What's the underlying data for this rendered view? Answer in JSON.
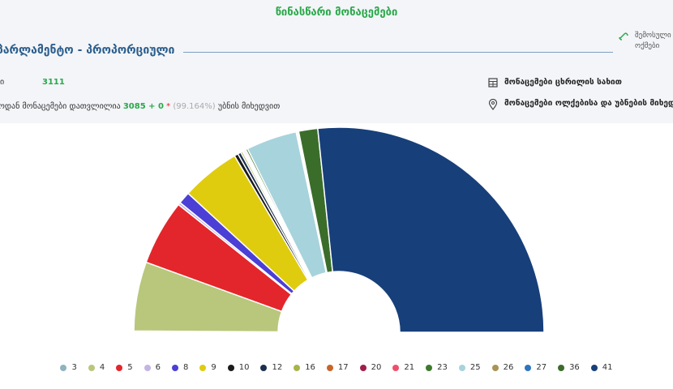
{
  "header": {
    "title": "წინასწარი მონაცემები",
    "section": "პარლამენტო - პროპორციული",
    "link": "შემოსული ოქმები"
  },
  "stats": {
    "total_label": "ი",
    "total": "3111",
    "counted_label": "ოდან მონაცემები დათვლილია",
    "counted": "3085 + 0",
    "asterisk": "*",
    "percent": "(99.164%)",
    "counted_suffix": "უბნის მიხედვით"
  },
  "links": [
    "მონაცემები ცხრილის სახით",
    "მონაცემები ოლქებისა და უბნების მიხედვით"
  ],
  "chart_data": {
    "type": "pie",
    "categories": [
      "3",
      "4",
      "5",
      "6",
      "8",
      "9",
      "10",
      "12",
      "16",
      "17",
      "20",
      "21",
      "23",
      "25",
      "26",
      "27",
      "36",
      "41"
    ],
    "values": [
      0.2,
      10.9,
      10.3,
      0.4,
      1.9,
      9.3,
      0.6,
      0.5,
      0.3,
      0.2,
      0.2,
      0.2,
      0.3,
      8.0,
      0.2,
      0.2,
      3.0,
      53.3
    ],
    "colors": [
      "#8fb3bf",
      "#b8c77b",
      "#e3262b",
      "#c3b5e3",
      "#4b3fd6",
      "#dfcc0e",
      "#1b1b1b",
      "#1d2f4f",
      "#a8b44a",
      "#c8652a",
      "#a01f4a",
      "#ef4f6b",
      "#3d7a2c",
      "#a7d3dc",
      "#a89555",
      "#2f74c0",
      "#3b6d2a",
      "#173f7a"
    ]
  }
}
